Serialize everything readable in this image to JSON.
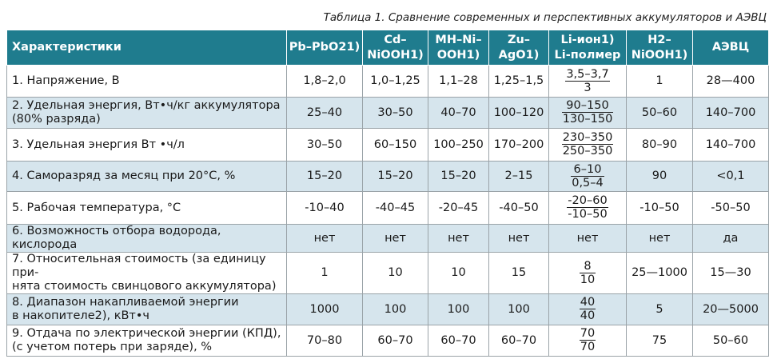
{
  "caption": "Таблица 1. Сравнение современных и перспективных аккумуляторов и АЭВЦ",
  "headers": [
    "Характеристики",
    "Pb–PbO21)",
    "Cd–\nNiOOH1)",
    "MH–Ni–\nOOH1)",
    "Zu–\nAgO1)",
    "Li-ион1)\nLi-полмер",
    "H2–\nNiOOH1)",
    "АЭВЦ"
  ],
  "rows": [
    {
      "label": "1. Напряжение, В",
      "v1": "1,8–2,0",
      "v2": "1,0–1,25",
      "v3": "1,1–28",
      "v4": "1,25–1,5",
      "li_num": "3,5–3,7",
      "li_den": "3",
      "v6": "1",
      "v7": "28—400"
    },
    {
      "label": "2. Удельная энергия, Вт•ч/кг аккумулятора\n(80% разряда)",
      "v1": "25–40",
      "v2": "30–50",
      "v3": "40–70",
      "v4": "100–120",
      "li_num": "90–150",
      "li_den": "130–150",
      "v6": "50–60",
      "v7": "140–700"
    },
    {
      "label": "3. Удельная энергия Вт •ч/л",
      "v1": "30–50",
      "v2": "60–150",
      "v3": "100–250",
      "v4": "170–200",
      "li_num": "230–350",
      "li_den": "250–350",
      "v6": "80–90",
      "v7": "140–700"
    },
    {
      "label": "4. Саморазряд за месяц при 20°С, %",
      "v1": "15–20",
      "v2": "15–20",
      "v3": "15–20",
      "v4": "2–15",
      "li_num": "6–10",
      "li_den": "0,5–4",
      "v6": "90",
      "v7": "<0,1"
    },
    {
      "label": "5. Рабочая температура, °С",
      "v1": "-10–40",
      "v2": "-40–45",
      "v3": "-20–45",
      "v4": "-40–50",
      "li_num": "-20–60",
      "li_den": "-10–50",
      "v6": "-10–50",
      "v7": "-50–50"
    },
    {
      "label": "6. Возможность отбора водорода, кислорода",
      "v1": "нет",
      "v2": "нет",
      "v3": "нет",
      "v4": "нет",
      "li_plain": "нет",
      "v6": "нет",
      "v7": "да"
    },
    {
      "label": "7. Относительная стоимость (за единицу при-\nнята стоимость свинцового аккумулятора)",
      "v1": "1",
      "v2": "10",
      "v3": "10",
      "v4": "15",
      "li_num": "8",
      "li_den": "10",
      "v6": "25—1000",
      "v7": "15—30"
    },
    {
      "label": "8. Диапазон накапливаемой энергии\nв накопителе2), кВт•ч",
      "v1": "1000",
      "v2": "100",
      "v3": "100",
      "v4": "100",
      "li_num": "40",
      "li_den": "40",
      "v6": "5",
      "v7": "20—5000"
    },
    {
      "label": "9. Отдача по электрической энергии (КПД),\n(с учетом потерь при заряде), %",
      "v1": "70–80",
      "v2": "60–70",
      "v3": "60–70",
      "v4": "60–70",
      "li_num": "70",
      "li_den": "70",
      "v6": "75",
      "v7": "50–60"
    }
  ]
}
